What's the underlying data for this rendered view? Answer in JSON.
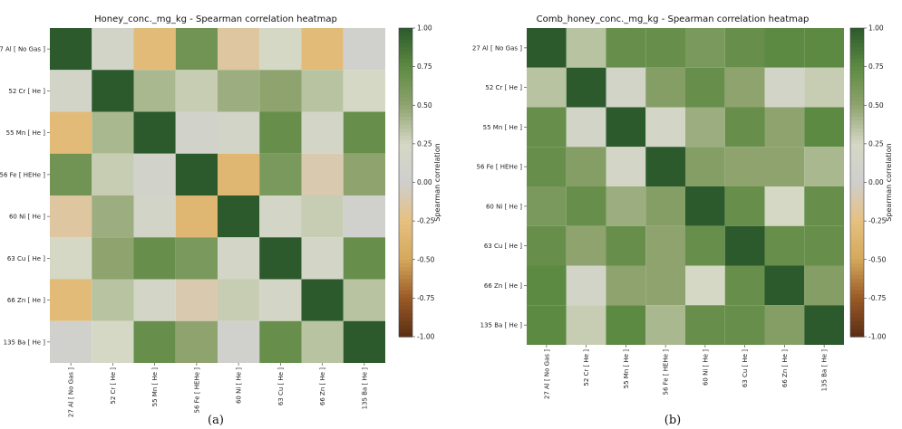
{
  "chart_data": [
    {
      "type": "heatmap",
      "title": "Honey_conc._mg_kg - Spearman correlation heatmap",
      "rows": [
        "27 Al [ No Gas ]",
        "52 Cr [ He ]",
        "55 Mn [ He ]",
        "56 Fe [ HEHe ]",
        "60 Ni [ He ]",
        "63 Cu [ He ]",
        "66 Zn [ He ]",
        "135 Ba [ He ]"
      ],
      "columns": [
        "27 Al [ No Gas ]",
        "52 Cr [ He ]",
        "55 Mn [ He ]",
        "56 Fe [ HEHe ]",
        "60 Ni [ He ]",
        "63 Cu [ He ]",
        "66 Zn [ He ]",
        "135 Ba [ He ]"
      ],
      "values": [
        [
          1.0,
          0.15,
          -0.3,
          0.65,
          -0.15,
          0.25,
          -0.3,
          0.05
        ],
        [
          0.15,
          1.0,
          0.4,
          0.3,
          0.45,
          0.5,
          0.35,
          0.25
        ],
        [
          -0.3,
          0.4,
          1.0,
          0.1,
          0.15,
          0.7,
          0.2,
          0.7
        ],
        [
          0.65,
          0.3,
          0.1,
          1.0,
          -0.35,
          0.6,
          -0.1,
          0.5
        ],
        [
          -0.15,
          0.45,
          0.15,
          -0.35,
          1.0,
          0.2,
          0.3,
          0.05
        ],
        [
          0.25,
          0.5,
          0.7,
          0.6,
          0.2,
          1.0,
          0.2,
          0.7
        ],
        [
          -0.3,
          0.35,
          0.2,
          -0.1,
          0.3,
          0.2,
          1.0,
          0.35
        ],
        [
          0.05,
          0.25,
          0.7,
          0.5,
          0.05,
          0.7,
          0.35,
          1.0
        ]
      ],
      "colorbar": {
        "label": "Spearman correlation",
        "vmin": -1.0,
        "vmax": 1.0,
        "ticks": [
          "1.00",
          "0.75",
          "0.50",
          "0.25",
          "0.00",
          "-0.25",
          "-0.50",
          "-0.75",
          "-1.00"
        ]
      },
      "panel_label": "(a)"
    },
    {
      "type": "heatmap",
      "title": "Comb_honey_conc._mg_kg - Spearman correlation heatmap",
      "rows": [
        "27 Al [ No Gas ]",
        "52 Cr [ He ]",
        "55 Mn [ He ]",
        "56 Fe [ HEHe ]",
        "60 Ni [ He ]",
        "63 Cu [ He ]",
        "66 Zn [ He ]",
        "135 Ba [ He ]"
      ],
      "columns": [
        "27 Al [ No Gas ]",
        "52 Cr [ He ]",
        "55 Mn [ He ]",
        "56 Fe [ HEHe ]",
        "60 Ni [ He ]",
        "63 Cu [ He ]",
        "66 Zn [ He ]",
        "135 Ba [ He ]"
      ],
      "values": [
        [
          1.0,
          0.35,
          0.7,
          0.7,
          0.6,
          0.7,
          0.75,
          0.75
        ],
        [
          0.35,
          1.0,
          0.15,
          0.55,
          0.7,
          0.5,
          0.15,
          0.3
        ],
        [
          0.7,
          0.15,
          1.0,
          0.2,
          0.45,
          0.7,
          0.5,
          0.75
        ],
        [
          0.7,
          0.55,
          0.2,
          1.0,
          0.55,
          0.5,
          0.5,
          0.4
        ],
        [
          0.6,
          0.7,
          0.45,
          0.55,
          1.0,
          0.7,
          0.25,
          0.7
        ],
        [
          0.7,
          0.5,
          0.7,
          0.5,
          0.7,
          1.0,
          0.7,
          0.7
        ],
        [
          0.75,
          0.15,
          0.5,
          0.5,
          0.25,
          0.7,
          1.0,
          0.55
        ],
        [
          0.75,
          0.3,
          0.75,
          0.4,
          0.7,
          0.7,
          0.55,
          1.0
        ]
      ],
      "colorbar": {
        "label": "Spearman correlation",
        "vmin": -1.0,
        "vmax": 1.0,
        "ticks": [
          "1.00",
          "0.75",
          "0.50",
          "0.25",
          "0.00",
          "-0.25",
          "-0.50",
          "-0.75",
          "-1.00"
        ]
      },
      "panel_label": "(b)"
    }
  ],
  "colors": {
    "scale": [
      "#5a2e14",
      "#9a5a26",
      "#d4a85c",
      "#e6c080",
      "#cfcfcf",
      "#d4d8c4",
      "#8ea36e",
      "#5d8a42",
      "#2c5a2c"
    ]
  }
}
